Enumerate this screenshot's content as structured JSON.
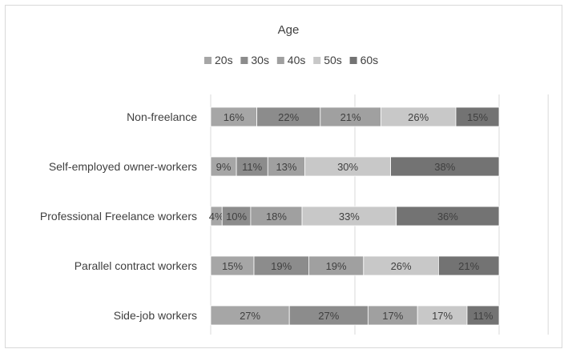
{
  "chart_data": {
    "type": "bar",
    "orientation": "horizontal",
    "stacked": "percent",
    "title": "Age",
    "legend_position": "top",
    "categories": [
      "Non-freelance",
      "Self-employed owner-workers",
      "Professional Freelance workers",
      "Parallel contract workers",
      "Side-job workers"
    ],
    "series": [
      {
        "name": "20s",
        "color": "#a6a6a6",
        "values": [
          16,
          9,
          4,
          15,
          27
        ]
      },
      {
        "name": "30s",
        "color": "#8c8c8c",
        "values": [
          22,
          11,
          10,
          19,
          27
        ]
      },
      {
        "name": "40s",
        "color": "#a0a0a0",
        "values": [
          21,
          13,
          18,
          19,
          17
        ]
      },
      {
        "name": "50s",
        "color": "#c8c8c8",
        "values": [
          26,
          30,
          33,
          26,
          17
        ]
      },
      {
        "name": "60s",
        "color": "#737373",
        "values": [
          15,
          38,
          36,
          21,
          11
        ]
      }
    ],
    "value_suffix": "%",
    "grid": "vertical"
  }
}
